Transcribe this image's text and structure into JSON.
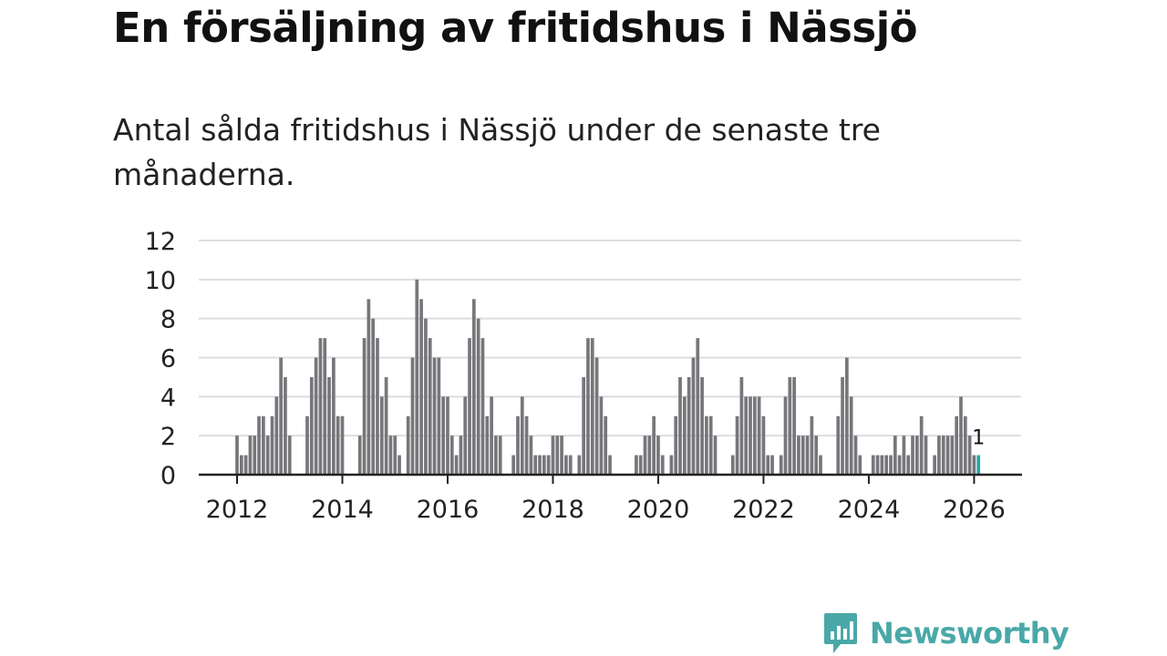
{
  "title": "En försäljning av fritidshus i Nässjö",
  "subtitle": "Antal sålda fritidshus i Nässjö under de senaste tre månaderna.",
  "brand": {
    "name": "Newsworthy",
    "color": "#4aa8a8",
    "icon": "chat-bar-chart-icon"
  },
  "colors": {
    "bar": "#77767b",
    "highlight": "#26a5a7",
    "grid": "#dddddd",
    "axis": "#222222"
  },
  "chart_data": {
    "type": "bar",
    "title": "",
    "xlabel": "",
    "ylabel": "",
    "ylim": [
      0,
      12
    ],
    "yticks": [
      0,
      2,
      4,
      6,
      8,
      10,
      12
    ],
    "xticks": [
      2012,
      2014,
      2016,
      2018,
      2020,
      2022,
      2024,
      2026
    ],
    "x_start": {
      "year": 2012,
      "month": 1
    },
    "grid": true,
    "legend": "none",
    "highlight_last": true,
    "last_value_label": "1",
    "values": [
      2,
      1,
      1,
      2,
      2,
      3,
      3,
      2,
      3,
      4,
      6,
      5,
      2,
      0,
      0,
      0,
      3,
      5,
      6,
      7,
      7,
      5,
      6,
      3,
      3,
      0,
      0,
      0,
      2,
      7,
      9,
      8,
      7,
      4,
      5,
      2,
      2,
      1,
      0,
      3,
      6,
      10,
      9,
      8,
      7,
      6,
      6,
      4,
      4,
      2,
      1,
      2,
      4,
      7,
      9,
      8,
      7,
      3,
      4,
      2,
      2,
      0,
      0,
      1,
      3,
      4,
      3,
      2,
      1,
      1,
      1,
      1,
      2,
      2,
      2,
      1,
      1,
      0,
      1,
      5,
      7,
      7,
      6,
      4,
      3,
      1,
      0,
      0,
      0,
      0,
      0,
      1,
      1,
      2,
      2,
      3,
      2,
      1,
      0,
      1,
      3,
      5,
      4,
      5,
      6,
      7,
      5,
      3,
      3,
      2,
      0,
      0,
      0,
      1,
      3,
      5,
      4,
      4,
      4,
      4,
      3,
      1,
      1,
      0,
      1,
      4,
      5,
      5,
      2,
      2,
      2,
      3,
      2,
      1,
      0,
      0,
      0,
      3,
      5,
      6,
      4,
      2,
      1,
      0,
      0,
      1,
      1,
      1,
      1,
      1,
      2,
      1,
      2,
      1,
      2,
      2,
      3,
      2,
      0,
      1,
      2,
      2,
      2,
      2,
      3,
      4,
      3,
      2,
      1,
      1
    ]
  }
}
